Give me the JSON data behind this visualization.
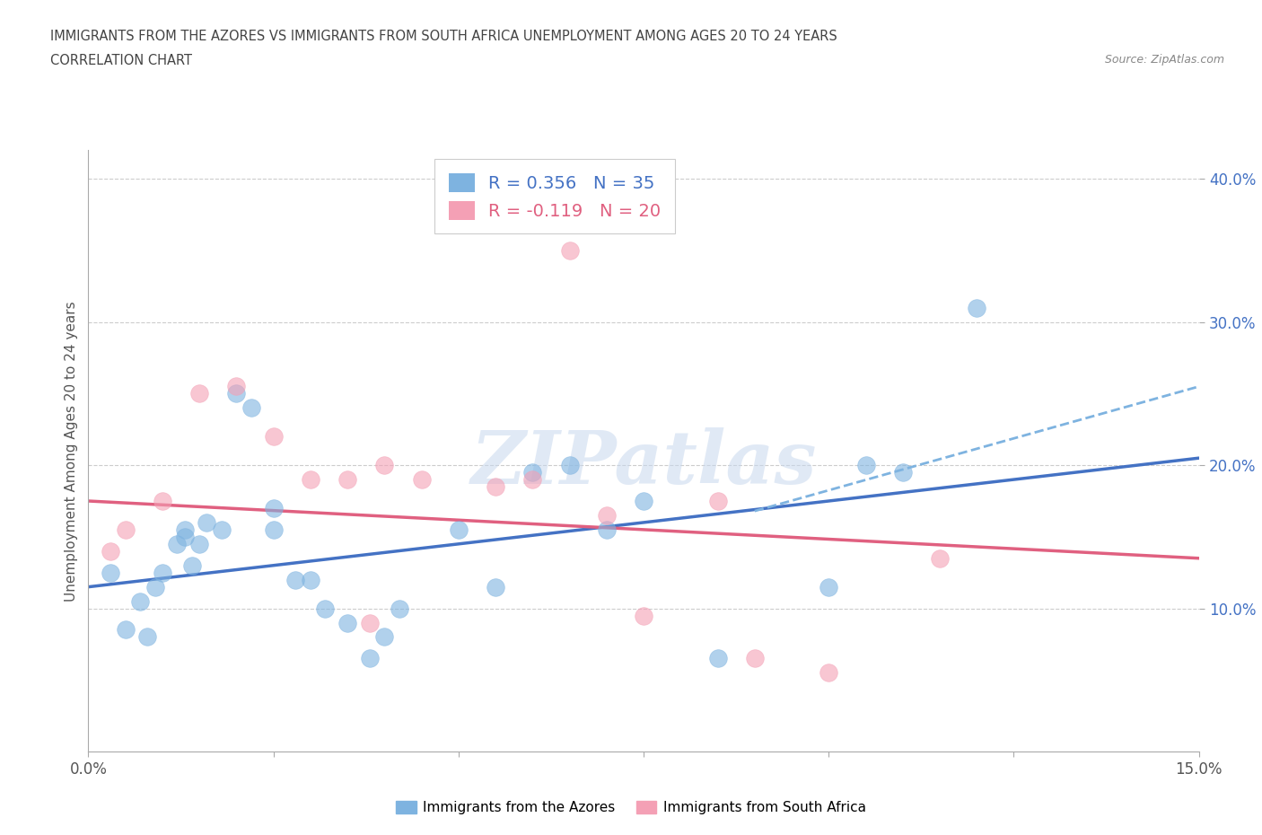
{
  "title_line1": "IMMIGRANTS FROM THE AZORES VS IMMIGRANTS FROM SOUTH AFRICA UNEMPLOYMENT AMONG AGES 20 TO 24 YEARS",
  "title_line2": "CORRELATION CHART",
  "source": "Source: ZipAtlas.com",
  "ylabel": "Unemployment Among Ages 20 to 24 years",
  "xlim": [
    0.0,
    0.15
  ],
  "ylim": [
    0.0,
    0.42
  ],
  "xticks": [
    0.0,
    0.025,
    0.05,
    0.075,
    0.1,
    0.125,
    0.15
  ],
  "xticklabels": [
    "0.0%",
    "",
    "",
    "",
    "",
    "",
    "15.0%"
  ],
  "yticks": [
    0.1,
    0.2,
    0.3,
    0.4
  ],
  "yticklabels": [
    "10.0%",
    "20.0%",
    "30.0%",
    "40.0%"
  ],
  "azores_color": "#7eb3e0",
  "azores_dark": "#4472c4",
  "sa_color": "#f4a0b5",
  "sa_dark": "#e06080",
  "azores_R": 0.356,
  "azores_N": 35,
  "sa_R": -0.119,
  "sa_N": 20,
  "watermark": "ZIPatlas",
  "azores_scatter_x": [
    0.003,
    0.005,
    0.007,
    0.008,
    0.009,
    0.01,
    0.012,
    0.013,
    0.013,
    0.014,
    0.015,
    0.016,
    0.018,
    0.02,
    0.022,
    0.025,
    0.025,
    0.028,
    0.03,
    0.032,
    0.035,
    0.038,
    0.04,
    0.042,
    0.05,
    0.055,
    0.06,
    0.065,
    0.07,
    0.075,
    0.085,
    0.1,
    0.105,
    0.11,
    0.12
  ],
  "azores_scatter_y": [
    0.125,
    0.085,
    0.105,
    0.08,
    0.115,
    0.125,
    0.145,
    0.155,
    0.15,
    0.13,
    0.145,
    0.16,
    0.155,
    0.25,
    0.24,
    0.155,
    0.17,
    0.12,
    0.12,
    0.1,
    0.09,
    0.065,
    0.08,
    0.1,
    0.155,
    0.115,
    0.195,
    0.2,
    0.155,
    0.175,
    0.065,
    0.115,
    0.2,
    0.195,
    0.31
  ],
  "sa_scatter_x": [
    0.003,
    0.005,
    0.01,
    0.015,
    0.02,
    0.025,
    0.03,
    0.035,
    0.038,
    0.04,
    0.045,
    0.055,
    0.06,
    0.065,
    0.07,
    0.075,
    0.085,
    0.09,
    0.1,
    0.115
  ],
  "sa_scatter_y": [
    0.14,
    0.155,
    0.175,
    0.25,
    0.255,
    0.22,
    0.19,
    0.19,
    0.09,
    0.2,
    0.19,
    0.185,
    0.19,
    0.35,
    0.165,
    0.095,
    0.175,
    0.065,
    0.055,
    0.135
  ],
  "legend_label_azores": "Immigrants from the Azores",
  "legend_label_sa": "Immigrants from South Africa",
  "azores_trend_x": [
    0.0,
    0.15
  ],
  "azores_trend_y": [
    0.115,
    0.205
  ],
  "sa_trend_x": [
    0.0,
    0.15
  ],
  "sa_trend_y": [
    0.175,
    0.135
  ],
  "background_color": "#ffffff",
  "grid_color": "#cccccc"
}
